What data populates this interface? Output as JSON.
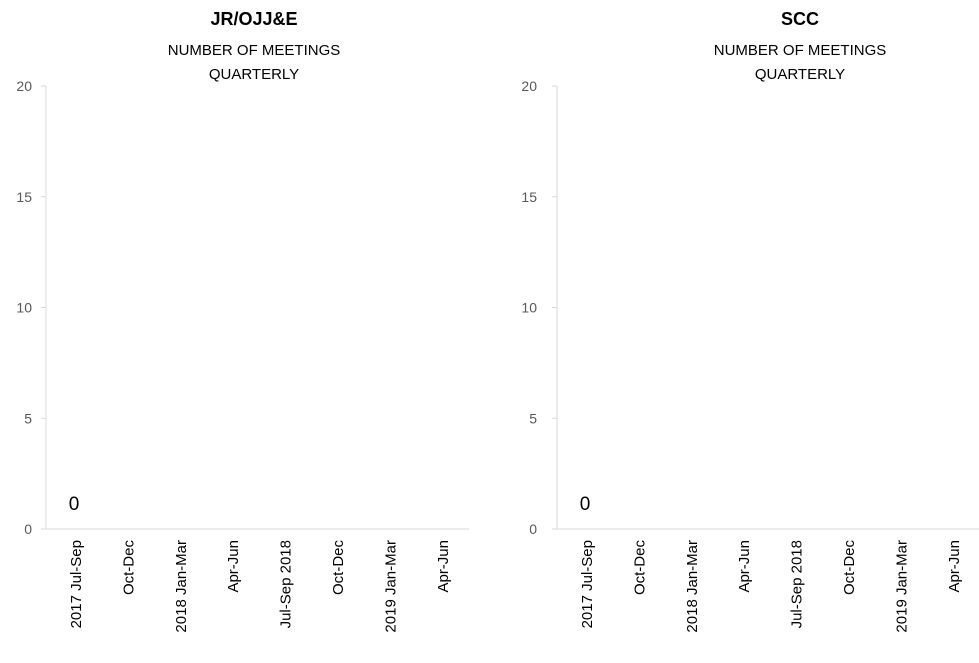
{
  "chart_data": [
    {
      "type": "bar",
      "title": "JR/OJJ&E",
      "subtitle_lines": [
        "NUMBER OF MEETINGS",
        "QUARTERLY"
      ],
      "categories": [
        "2017 Jul-Sep",
        "Oct-Dec",
        "2018 Jan-Mar",
        "Apr-Jun",
        "Jul-Sep 2018",
        "Oct-Dec",
        "2019 Jan-Mar",
        "Apr-Jun"
      ],
      "values": [
        0,
        null,
        null,
        null,
        null,
        null,
        null,
        null
      ],
      "data_labels": [
        "0"
      ],
      "ylim": [
        0,
        20
      ],
      "yticks": [
        0,
        5,
        10,
        15,
        20
      ],
      "ytick_labels": [
        "0",
        "5",
        "10",
        "15",
        "20"
      ],
      "grid": false,
      "legend": "none"
    },
    {
      "type": "bar",
      "title": "SCC",
      "subtitle_lines": [
        "NUMBER OF MEETINGS",
        "QUARTERLY"
      ],
      "categories": [
        "2017 Jul-Sep",
        "Oct-Dec",
        "2018 Jan-Mar",
        "Apr-Jun",
        "Jul-Sep 2018",
        "Oct-Dec",
        "2019 Jan-Mar",
        "Apr-Jun"
      ],
      "values": [
        0,
        null,
        null,
        null,
        null,
        null,
        null,
        null
      ],
      "data_labels": [
        "0"
      ],
      "ylim": [
        0,
        20
      ],
      "yticks": [
        0,
        5,
        10,
        15,
        20
      ],
      "ytick_labels": [
        "0",
        "5",
        "10",
        "15",
        "20"
      ],
      "grid": false,
      "legend": "none"
    }
  ],
  "colors": {
    "text": "#000000",
    "tick_text": "#595959",
    "axis": "#d9d9d9",
    "bar": "#4472c4"
  }
}
